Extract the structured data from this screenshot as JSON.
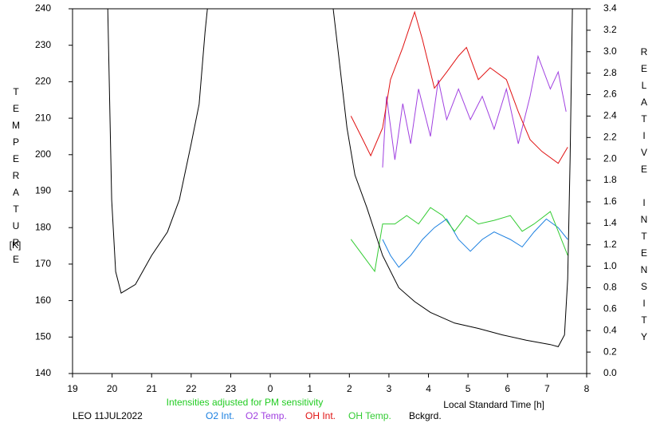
{
  "chart_data": {
    "type": "line",
    "y_label": "TEMPERATURE",
    "y_unit": "[K]",
    "y2_label": "RELATIVE INTENSITY",
    "x_label": "Local Standard Time [h]",
    "note": "Intensities adjusted for PM sensitivity",
    "note_color": "#22cc22",
    "station": "LEO 11JUL2022",
    "xlim": [
      19,
      32
    ],
    "xticks": [
      19,
      20,
      21,
      22,
      23,
      {
        "value": 24,
        "label": "0"
      },
      {
        "value": 25,
        "label": "1"
      },
      {
        "value": 26,
        "label": "2"
      },
      {
        "value": 27,
        "label": "3"
      },
      {
        "value": 28,
        "label": "4"
      },
      {
        "value": 29,
        "label": "5"
      },
      {
        "value": 30,
        "label": "6"
      },
      {
        "value": 31,
        "label": "7"
      },
      {
        "value": 32,
        "label": "8"
      }
    ],
    "ylim": [
      140,
      240
    ],
    "yticks": [
      140,
      150,
      160,
      170,
      180,
      190,
      200,
      210,
      220,
      230,
      240
    ],
    "y2lim": [
      0,
      3.4
    ],
    "y2ticks": [
      {
        "value": 0,
        "label": "0.0"
      },
      0.2,
      0.4,
      0.6,
      0.8,
      {
        "value": 1,
        "label": "1.0"
      },
      1.2,
      1.4,
      1.6,
      1.8,
      {
        "value": 2,
        "label": "2.0"
      },
      2.2,
      2.4,
      2.6,
      2.8,
      {
        "value": 3,
        "label": "3.0"
      },
      3.2,
      3.4
    ],
    "series": [
      {
        "name": "O2 Int.",
        "color": "#1a7fe0",
        "axis": "y2",
        "x": [
          26.84,
          27.04,
          27.25,
          27.55,
          27.85,
          28.15,
          28.46,
          28.76,
          29.06,
          29.36,
          29.66,
          30.07,
          30.37,
          30.67,
          30.98,
          31.28,
          31.52
        ],
        "values": [
          1.25,
          1.1,
          0.99,
          1.1,
          1.25,
          1.36,
          1.44,
          1.25,
          1.14,
          1.25,
          1.32,
          1.25,
          1.18,
          1.32,
          1.44,
          1.36,
          1.25
        ]
      },
      {
        "name": "O2 Temp.",
        "color": "#a040e0",
        "axis": "y",
        "x": [
          26.84,
          26.94,
          27.15,
          27.35,
          27.55,
          27.75,
          28.05,
          28.25,
          28.46,
          28.76,
          29.06,
          29.36,
          29.66,
          29.97,
          30.27,
          30.57,
          30.77,
          31.08,
          31.28,
          31.48
        ],
        "values": [
          196.5,
          216,
          198.6,
          214,
          203,
          218,
          205,
          220.5,
          209.6,
          218,
          209.6,
          216,
          207,
          218,
          203,
          216,
          227,
          218,
          222.7,
          211.8
        ]
      },
      {
        "name": "OH Int.",
        "color": "#e01010",
        "axis": "y2",
        "x": [
          26.04,
          26.34,
          26.54,
          26.84,
          27.04,
          27.35,
          27.55,
          27.65,
          27.85,
          28.15,
          28.46,
          28.76,
          28.96,
          29.26,
          29.56,
          29.97,
          30.27,
          30.57,
          30.87,
          31.28,
          31.52
        ],
        "values": [
          2.4,
          2.18,
          2.03,
          2.29,
          2.74,
          3.04,
          3.26,
          3.37,
          3.11,
          2.66,
          2.81,
          2.96,
          3.04,
          2.74,
          2.85,
          2.74,
          2.44,
          2.18,
          2.07,
          1.96,
          2.11
        ]
      },
      {
        "name": "OH Temp.",
        "color": "#33cc33",
        "axis": "y",
        "x": [
          26.04,
          26.34,
          26.64,
          26.84,
          27.15,
          27.45,
          27.75,
          28.05,
          28.36,
          28.66,
          28.96,
          29.26,
          29.66,
          30.07,
          30.37,
          30.67,
          31.08,
          31.28,
          31.52
        ],
        "values": [
          176.8,
          172.4,
          168,
          181,
          181,
          183.3,
          181,
          185.5,
          183.3,
          179,
          183.3,
          181,
          182,
          183.3,
          179,
          181,
          184.4,
          179,
          172.4
        ]
      },
      {
        "name": "Bckgrd.",
        "color": "#000000",
        "axis": "y2",
        "x": [
          19.89,
          19.99,
          20.09,
          20.23,
          20.59,
          21.0,
          21.4,
          21.7,
          22.0,
          22.2,
          22.35,
          22.41,
          null,
          25.59,
          25.73,
          25.94,
          26.14,
          26.44,
          26.84,
          27.25,
          27.65,
          28.05,
          28.66,
          29.26,
          29.87,
          30.47,
          31.08,
          31.28,
          31.44,
          31.52,
          31.58,
          31.64
        ],
        "values": [
          3.4,
          1.62,
          0.95,
          0.75,
          0.83,
          1.1,
          1.32,
          1.62,
          2.14,
          2.51,
          3.18,
          3.4,
          null,
          3.4,
          2.96,
          2.29,
          1.85,
          1.55,
          1.1,
          0.8,
          0.67,
          0.57,
          0.47,
          0.42,
          0.36,
          0.31,
          0.27,
          0.25,
          0.36,
          0.88,
          1.99,
          3.4
        ]
      }
    ]
  }
}
